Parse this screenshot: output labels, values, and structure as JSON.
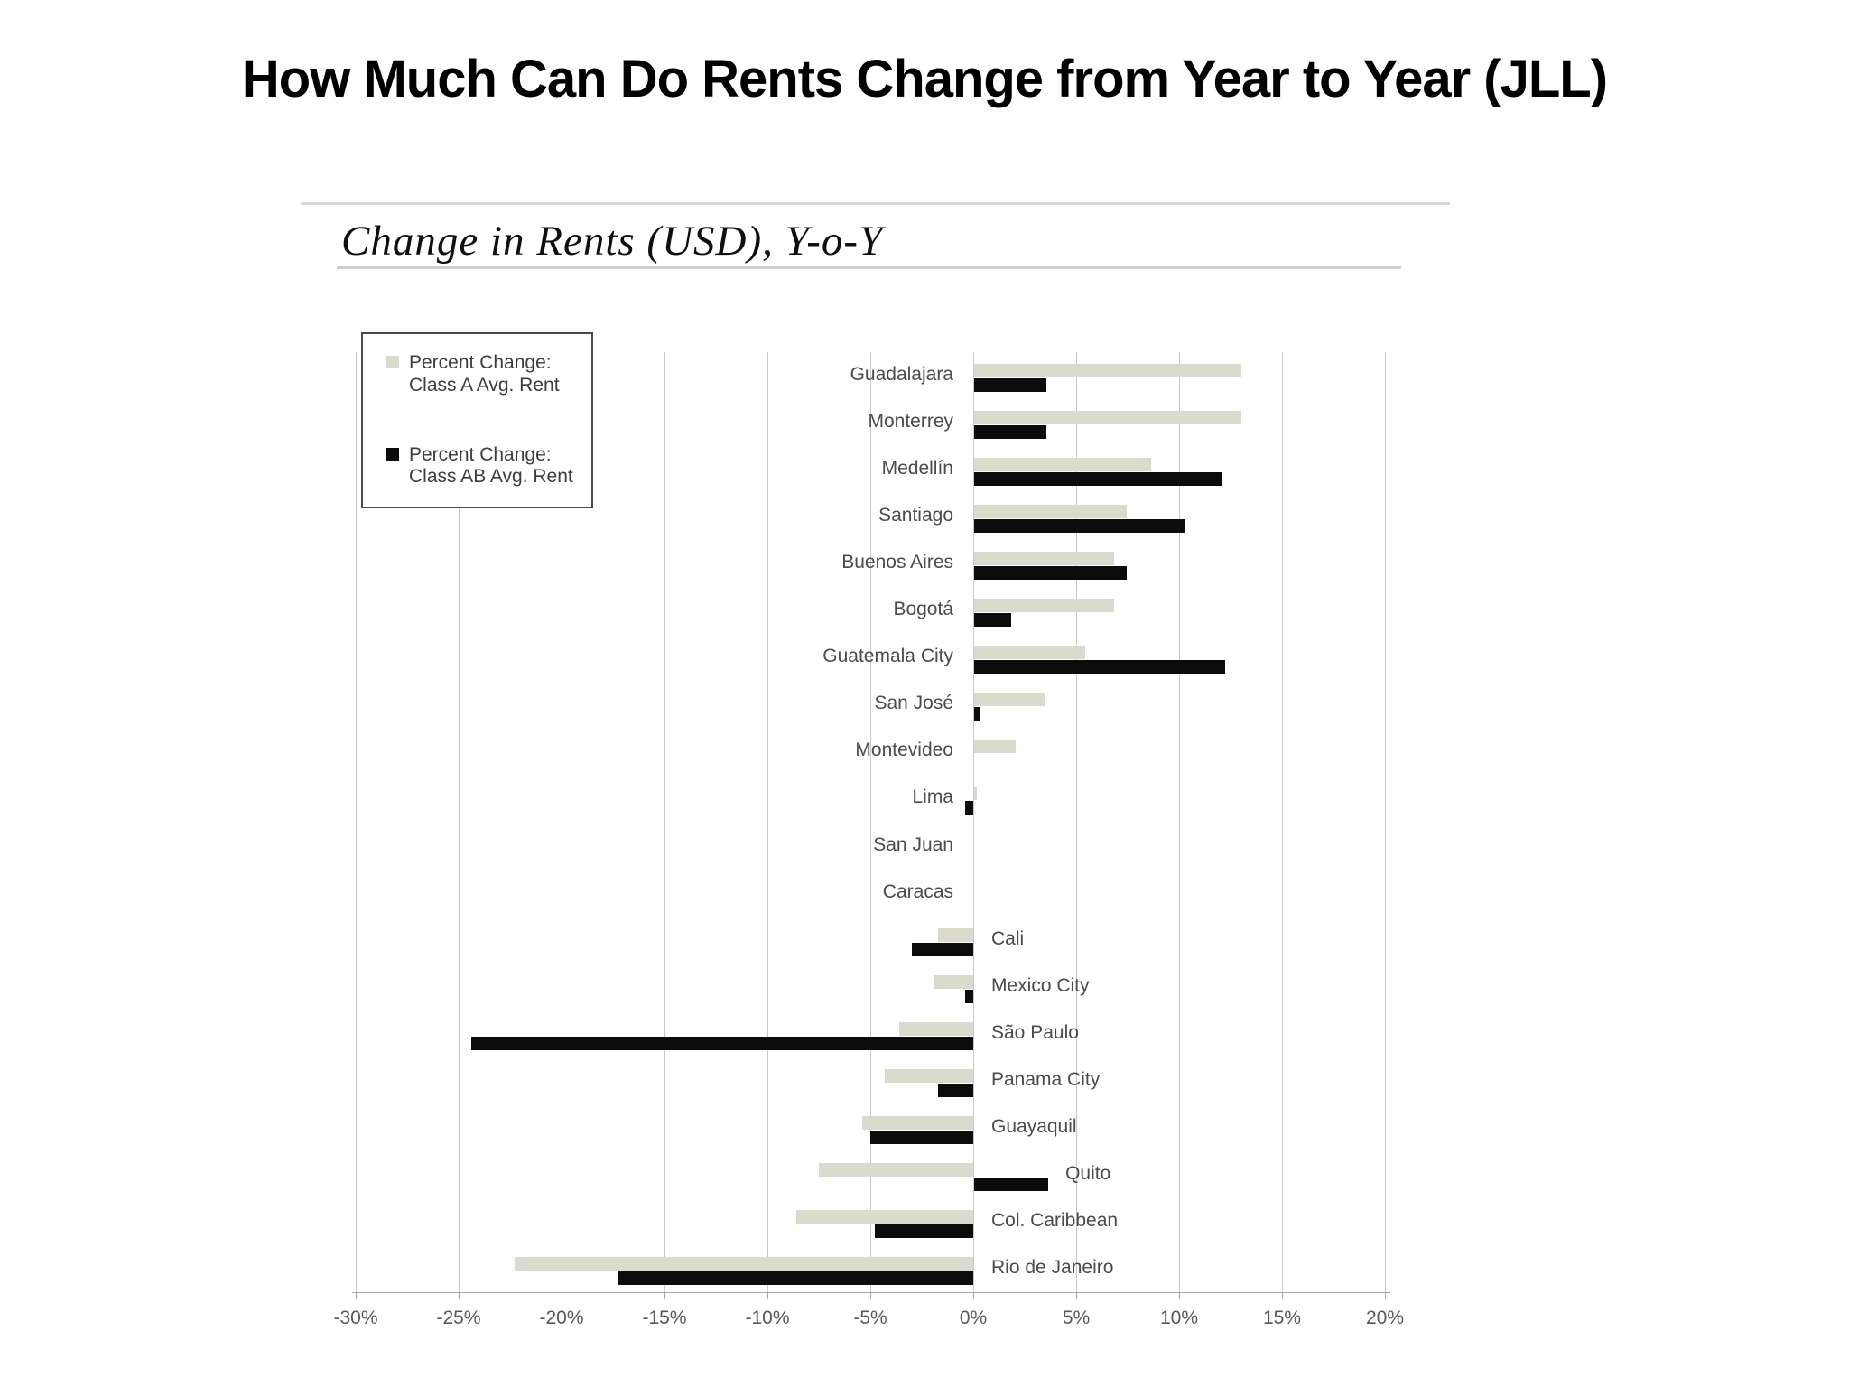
{
  "page": {
    "title": "How Much Can Do Rents Change from Year to Year (JLL)"
  },
  "chart": {
    "title": "Change in Rents (USD), Y-o-Y",
    "legend": {
      "items": [
        {
          "label_line1": "Percent Change:",
          "label_line2": "Class A Avg. Rent",
          "color": "#dbdbcd"
        },
        {
          "label_line1": "Percent Change:",
          "label_line2": "Class AB Avg. Rent",
          "color": "#0c0c0c"
        }
      ]
    }
  },
  "chart_data": {
    "type": "bar",
    "orientation": "horizontal",
    "title": "Change in Rents (USD), Y-o-Y",
    "categories": [
      "Guadalajara",
      "Monterrey",
      "Medellín",
      "Santiago",
      "Buenos Aires",
      "Bogotá",
      "Guatemala City",
      "San José",
      "Montevideo",
      "Lima",
      "San Juan",
      "Caracas",
      "Cali",
      "Mexico City",
      "São Paulo",
      "Panama City",
      "Guayaquil",
      "Quito",
      "Col. Caribbean",
      "Rio de Janeiro"
    ],
    "series": [
      {
        "name": "Percent Change: Class A Avg. Rent",
        "color": "#dbdbcd",
        "values": [
          13.0,
          13.0,
          8.6,
          7.4,
          6.8,
          6.8,
          5.4,
          3.4,
          2.0,
          0.15,
          0,
          0,
          -1.7,
          -1.9,
          -3.6,
          -4.3,
          -5.4,
          -7.5,
          -8.6,
          -22.3
        ]
      },
      {
        "name": "Percent Change: Class AB Avg. Rent",
        "color": "#0c0c0c",
        "values": [
          3.5,
          3.5,
          12.0,
          10.2,
          7.4,
          1.8,
          12.2,
          0.25,
          0,
          -0.4,
          0,
          0,
          -3.0,
          -0.4,
          -24.4,
          -1.7,
          -5.0,
          3.6,
          -4.8,
          -17.3
        ]
      }
    ],
    "x_axis": {
      "ticks": [
        "-30%",
        "-25%",
        "-20%",
        "-15%",
        "-10%",
        "-5%",
        "0%",
        "5%",
        "10%",
        "15%",
        "20%"
      ],
      "min": -30,
      "max": 20,
      "unit": "%"
    },
    "gridlines": true,
    "legend_position": "upper-left"
  }
}
